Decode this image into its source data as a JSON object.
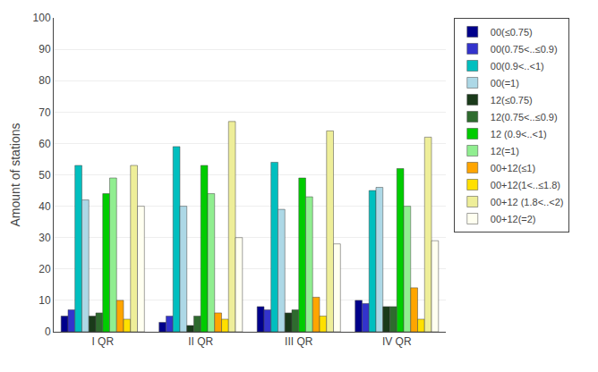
{
  "chart_data": {
    "type": "bar",
    "categories": [
      "I QR",
      "II QR",
      "III QR",
      "IV QR"
    ],
    "series": [
      {
        "name": "00(≤0.75)",
        "color": "#00008B",
        "values": [
          5,
          3,
          8,
          10
        ]
      },
      {
        "name": "00(0.75<..≤0.9)",
        "color": "#3333CC",
        "values": [
          7,
          5,
          7,
          9
        ]
      },
      {
        "name": "00(0.9<..<1)",
        "color": "#00BFBF",
        "values": [
          53,
          59,
          54,
          45
        ]
      },
      {
        "name": "00(=1)",
        "color": "#ADD8E6",
        "values": [
          42,
          40,
          39,
          46
        ]
      },
      {
        "name": "12(≤0.75)",
        "color": "#1A3A1A",
        "values": [
          5,
          2,
          6,
          8
        ]
      },
      {
        "name": "12(0.75<..≤0.9)",
        "color": "#2E6B2E",
        "values": [
          6,
          5,
          7,
          8
        ]
      },
      {
        "name": "12 (0.9<..<1)",
        "color": "#00CC00",
        "values": [
          44,
          53,
          49,
          52
        ]
      },
      {
        "name": "12(=1)",
        "color": "#90EE90",
        "values": [
          49,
          44,
          43,
          40
        ]
      },
      {
        "name": "00+12(≤1)",
        "color": "#FFA500",
        "values": [
          10,
          6,
          11,
          14
        ]
      },
      {
        "name": "00+12(1<..≤1.8)",
        "color": "#FFE000",
        "values": [
          4,
          4,
          5,
          4
        ]
      },
      {
        "name": "00+12 (1.8<..<2)",
        "color": "#EEEE99",
        "values": [
          53,
          67,
          64,
          62
        ]
      },
      {
        "name": "00+12(=2)",
        "color": "#FFFFF0",
        "values": [
          40,
          30,
          28,
          29
        ]
      }
    ],
    "ylabel": "Amount of stations",
    "ylim": [
      0,
      100
    ],
    "yticks": [
      0,
      10,
      20,
      30,
      40,
      50,
      60,
      70,
      80,
      90,
      100
    ],
    "grid": true,
    "legend": "right"
  }
}
